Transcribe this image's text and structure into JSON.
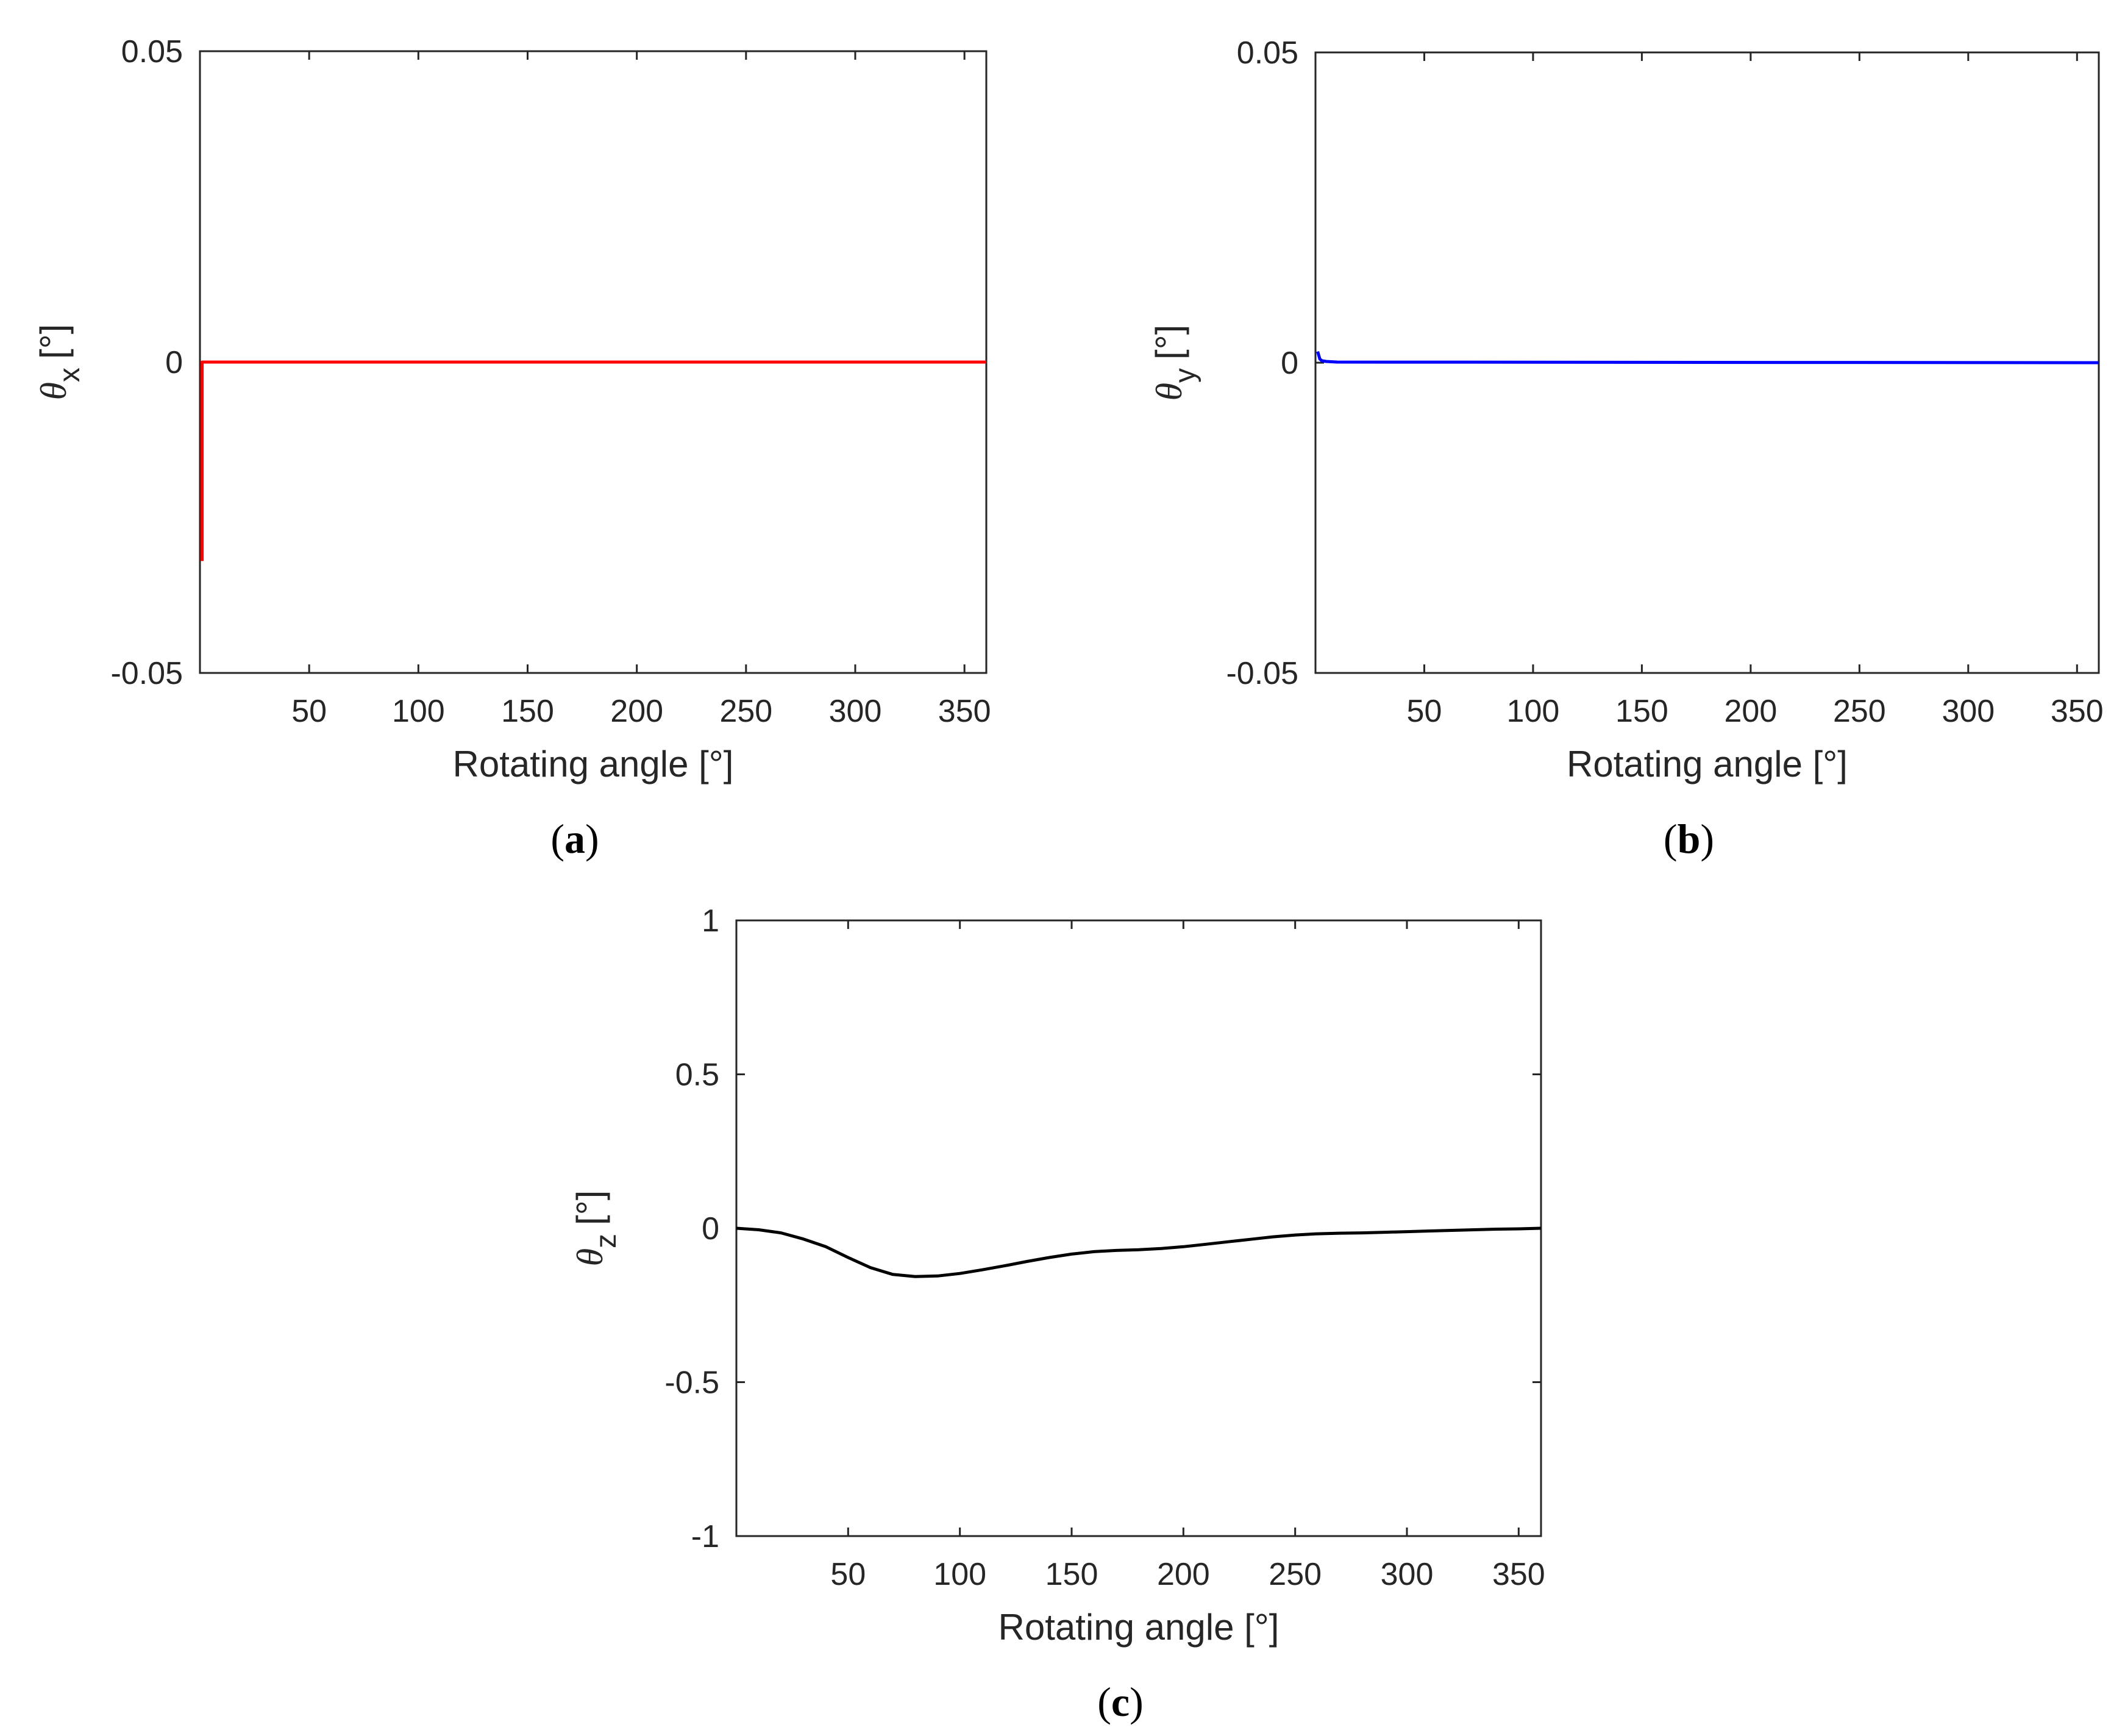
{
  "chart_data": [
    {
      "type": "line",
      "panel_label": "a",
      "xlabel": "Rotating angle [°]",
      "ylabel_symbol": "θ",
      "ylabel_subscript": "x",
      "ylabel_unit": "[°]",
      "xlim": [
        0,
        360
      ],
      "ylim": [
        -0.05,
        0.05
      ],
      "xticks": [
        50,
        100,
        150,
        200,
        250,
        300,
        350
      ],
      "yticks": [
        -0.05,
        0,
        0.05
      ],
      "ytick_labels": [
        "-0.05",
        "0",
        "0.05"
      ],
      "grid": false,
      "series": [
        {
          "color": "#ff0000",
          "x": [
            1,
            1,
            2,
            360
          ],
          "y": [
            -0.032,
            0,
            0,
            0
          ]
        }
      ]
    },
    {
      "type": "line",
      "panel_label": "b",
      "xlabel": "Rotating angle [°]",
      "ylabel_symbol": "θ",
      "ylabel_subscript": "y",
      "ylabel_unit": "[°]",
      "xlim": [
        0,
        360
      ],
      "ylim": [
        -0.05,
        0.05
      ],
      "xticks": [
        50,
        100,
        150,
        200,
        250,
        300,
        350
      ],
      "yticks": [
        -0.05,
        0,
        0.05
      ],
      "ytick_labels": [
        "-0.05",
        "0",
        "0.05"
      ],
      "grid": false,
      "series": [
        {
          "color": "#0000ff",
          "x": [
            1,
            1.5,
            2,
            3,
            5,
            10,
            360
          ],
          "y": [
            0.0018,
            0.0012,
            0.0006,
            0.0003,
            0.0002,
            0.0001,
            0
          ]
        }
      ]
    },
    {
      "type": "line",
      "panel_label": "c",
      "xlabel": "Rotating angle [°]",
      "ylabel_symbol": "θ",
      "ylabel_subscript": "z",
      "ylabel_unit": "[°]",
      "xlim": [
        0,
        360
      ],
      "ylim": [
        -1,
        1
      ],
      "xticks": [
        50,
        100,
        150,
        200,
        250,
        300,
        350
      ],
      "yticks": [
        -1,
        -0.5,
        0,
        0.5,
        1
      ],
      "ytick_labels": [
        "-1",
        "-0.5",
        "0",
        "0.5",
        "1"
      ],
      "grid": false,
      "series": [
        {
          "color": "#000000",
          "x": [
            0,
            10,
            20,
            30,
            40,
            50,
            60,
            70,
            80,
            90,
            100,
            110,
            120,
            130,
            140,
            150,
            160,
            170,
            180,
            190,
            200,
            210,
            220,
            230,
            240,
            250,
            260,
            270,
            280,
            290,
            300,
            310,
            320,
            330,
            340,
            350,
            360
          ],
          "y": [
            0,
            -0.005,
            -0.015,
            -0.035,
            -0.06,
            -0.095,
            -0.128,
            -0.15,
            -0.157,
            -0.155,
            -0.147,
            -0.135,
            -0.122,
            -0.108,
            -0.095,
            -0.084,
            -0.076,
            -0.072,
            -0.07,
            -0.066,
            -0.06,
            -0.052,
            -0.044,
            -0.036,
            -0.028,
            -0.022,
            -0.018,
            -0.016,
            -0.015,
            -0.013,
            -0.011,
            -0.009,
            -0.007,
            -0.005,
            -0.003,
            -0.002,
            0
          ]
        }
      ]
    }
  ]
}
